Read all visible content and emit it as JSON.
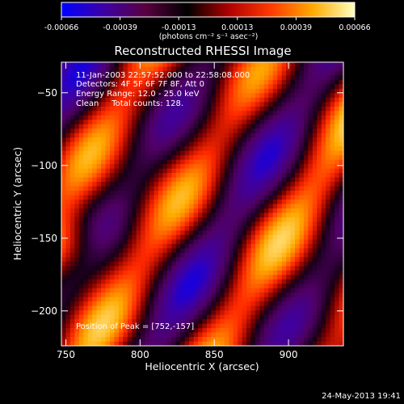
{
  "colorbar": {
    "ticks": [
      "-0.00066",
      "-0.00039",
      "-0.00013",
      "0.00013",
      "0.00039",
      "0.00066"
    ],
    "unit_label": "(photons cm⁻² s⁻¹ asec⁻²)",
    "range": [
      -0.00066,
      0.00066
    ],
    "colormap": [
      "#0000ff",
      "#3d00a8",
      "#5a0040",
      "#000000",
      "#b00000",
      "#ff3a00",
      "#ffaa00",
      "#ffffc0"
    ]
  },
  "footer": {
    "timestamp": "24-May-2013 19:41"
  },
  "chart_data": {
    "type": "heatmap",
    "title": "Reconstructed RHESSI Image",
    "xlabel": "Heliocentric X (arcsec)",
    "ylabel": "Heliocentric Y (arcsec)",
    "xlim": [
      747,
      937
    ],
    "ylim": [
      -224,
      -29
    ],
    "xticks": [
      750,
      800,
      850,
      900
    ],
    "yticks": [
      -50,
      -100,
      -150,
      -200
    ],
    "annotations": [
      "11-Jan-2003 22:57:52.000 to 22:58:08.000",
      "Detectors: 4F 5F 6F 7F 8F, Att 0",
      "Energy Range: 12.0 - 25.0 keV",
      "Clean     Total counts: 128.",
      "Position of Peak = [752,-157]"
    ],
    "peak": [
      752,
      -157
    ]
  }
}
